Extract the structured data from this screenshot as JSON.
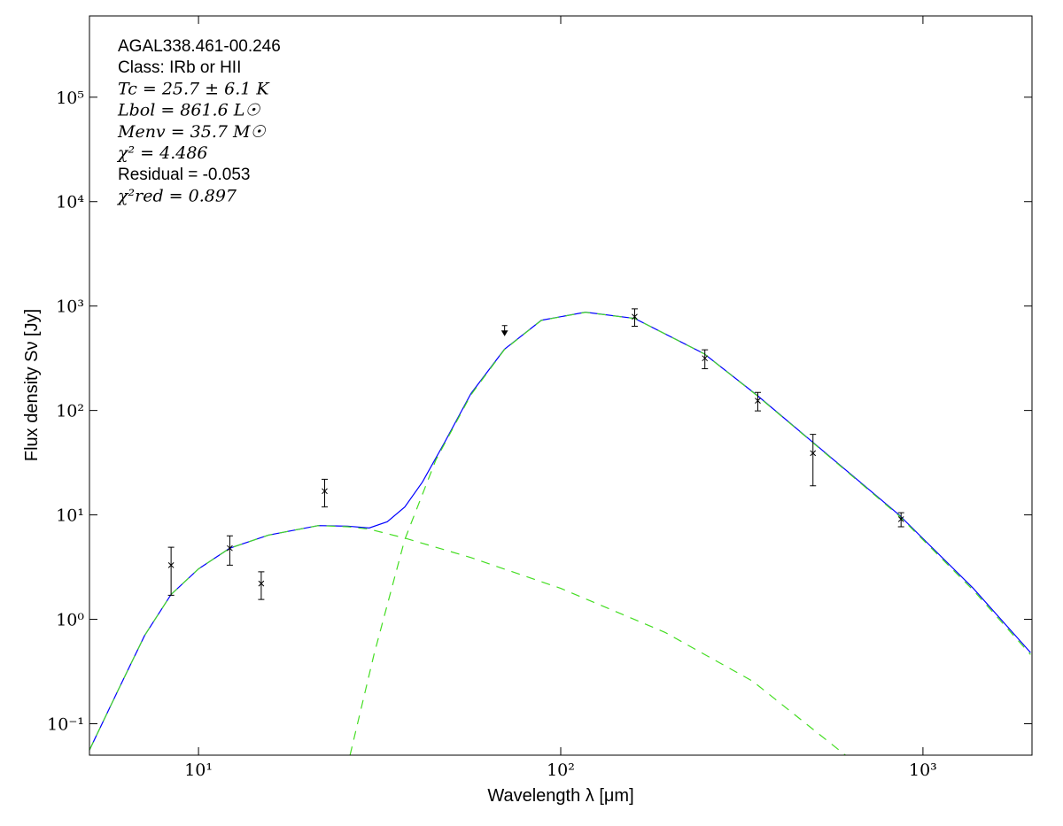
{
  "chart_data": {
    "type": "line",
    "xscale": "log",
    "yscale": "log",
    "xlabel": "Wavelength λ [μm]",
    "ylabel": "Flux density Sν [Jy]",
    "xlim": [
      5,
      2000
    ],
    "ylim": [
      0.05,
      600000
    ],
    "xticks": [
      {
        "value": 10,
        "label": "10¹"
      },
      {
        "value": 100,
        "label": "10²"
      },
      {
        "value": 1000,
        "label": "10³"
      }
    ],
    "yticks": [
      {
        "value": 0.1,
        "label": "10⁻¹"
      },
      {
        "value": 1,
        "label": "10⁰"
      },
      {
        "value": 10,
        "label": "10¹"
      },
      {
        "value": 100,
        "label": "10²"
      },
      {
        "value": 1000,
        "label": "10³"
      },
      {
        "value": 10000,
        "label": "10⁴"
      },
      {
        "value": 100000,
        "label": "10⁵"
      }
    ],
    "annotations": [
      "AGAL338.461-00.246",
      "Class: IRb or HII",
      "Tc = 25.7 ± 6.1 K",
      "Lbol = 861.6 L☉",
      "Menv = 35.7 M☉",
      "χ² = 4.486",
      "Residual = -0.053",
      "χ²red = 0.897"
    ],
    "series": [
      {
        "color": "#0000ff",
        "dashed": false,
        "x": [
          5.0,
          6.0,
          7.1,
          8.4,
          10,
          12.2,
          15.6,
          21.4,
          25.8,
          29.6,
          33.2,
          37.1,
          41.5,
          47.8,
          56.5,
          69.9,
          88.4,
          117,
          160,
          249,
          349,
          497,
          859,
          1377,
          1982
        ],
        "values": [
          0.056,
          0.21,
          0.7,
          1.73,
          3.04,
          4.8,
          6.4,
          7.9,
          7.8,
          7.5,
          8.6,
          11.9,
          20.6,
          49.5,
          145,
          385,
          731,
          873,
          761,
          349,
          139,
          49.5,
          10,
          1.98,
          0.48
        ]
      },
      {
        "color": "#44dd22",
        "dashed": true,
        "x": [
          5.0,
          6.0,
          7.1,
          8.4,
          10,
          12.2,
          15.6,
          21.4,
          25.8,
          29.6,
          37.1,
          56.5,
          100,
          194,
          339,
          611
        ],
        "values": [
          0.056,
          0.21,
          0.7,
          1.73,
          3.04,
          4.8,
          6.4,
          7.9,
          7.7,
          7.3,
          6.0,
          3.9,
          1.98,
          0.75,
          0.255,
          0.05
        ]
      },
      {
        "color": "#44dd22",
        "dashed": true,
        "x": [
          26.2,
          30.5,
          37.1,
          45.2,
          56.5,
          69.9,
          88.4,
          117,
          160,
          249,
          349,
          497,
          859,
          1377,
          1982
        ],
        "values": [
          0.05,
          0.458,
          5.8,
          33.5,
          141,
          382,
          729,
          871,
          760,
          348,
          138,
          49,
          9.8,
          1.9,
          0.46
        ]
      }
    ],
    "points": {
      "color": "#000000",
      "x": [
        8.4,
        12.2,
        14.9,
        22.3,
        160,
        250,
        350,
        497,
        870
      ],
      "values": [
        3.3,
        4.8,
        2.2,
        16.9,
        790,
        316,
        124,
        39,
        9.1
      ],
      "errors": [
        1.6,
        1.5,
        0.65,
        5,
        150,
        65,
        25,
        20,
        1.4
      ]
    },
    "upper_limits": {
      "color": "#000000",
      "x": [
        70
      ],
      "values": [
        650
      ]
    }
  }
}
